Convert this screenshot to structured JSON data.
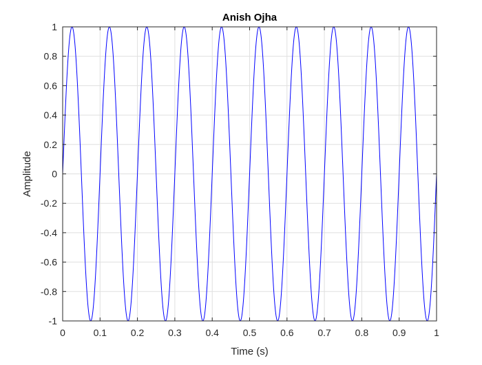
{
  "chart_data": {
    "type": "line",
    "title": "Anish Ojha",
    "xlabel": "Time (s)",
    "ylabel": "Amplitude",
    "xlim": [
      0,
      1
    ],
    "ylim": [
      -1,
      1
    ],
    "x_ticks": [
      0,
      0.1,
      0.2,
      0.3,
      0.4,
      0.5,
      0.6,
      0.7,
      0.8,
      0.9,
      1
    ],
    "x_tick_labels": [
      "0",
      "0.1",
      "0.2",
      "0.3",
      "0.4",
      "0.5",
      "0.6",
      "0.7",
      "0.8",
      "0.9",
      "1"
    ],
    "y_ticks": [
      -1,
      -0.8,
      -0.6,
      -0.4,
      -0.2,
      0,
      0.2,
      0.4,
      0.6,
      0.8,
      1
    ],
    "y_tick_labels": [
      "-1",
      "-0.8",
      "-0.6",
      "-0.4",
      "-0.2",
      "0",
      "0.2",
      "0.4",
      "0.6",
      "0.8",
      "1"
    ],
    "grid": true,
    "series": [
      {
        "function": "sine",
        "frequency_hz": 10,
        "amplitude": 1,
        "x_range": [
          0,
          1
        ],
        "color": "#0000ff"
      }
    ],
    "colors": {
      "line": "#0000ff",
      "axes": "#262626",
      "grid": "#dfdfdf",
      "background": "#ffffff"
    }
  }
}
